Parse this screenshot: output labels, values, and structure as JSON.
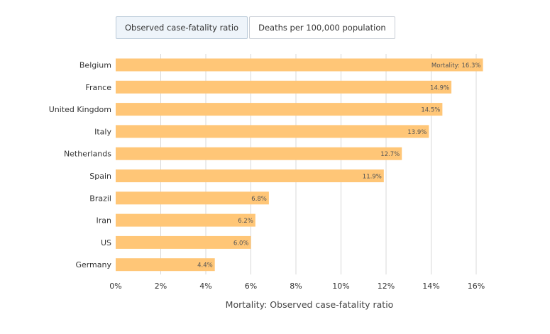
{
  "tabs": [
    {
      "label": "Observed case-fatality ratio",
      "active": true
    },
    {
      "label": "Deaths per 100,000 population",
      "active": false
    }
  ],
  "chart_data": {
    "type": "bar",
    "orientation": "horizontal",
    "categories": [
      "Belgium",
      "France",
      "United Kingdom",
      "Italy",
      "Netherlands",
      "Spain",
      "Brazil",
      "Iran",
      "US",
      "Germany"
    ],
    "values": [
      16.3,
      14.9,
      14.5,
      13.9,
      12.7,
      11.9,
      6.8,
      6.2,
      6.0,
      4.4
    ],
    "data_labels": [
      "Mortality: 16.3%",
      "14.9%",
      "14.5%",
      "13.9%",
      "12.7%",
      "11.9%",
      "6.8%",
      "6.2%",
      "6.0%",
      "4.4%"
    ],
    "xlabel": "Mortality: Observed case-fatality ratio",
    "xlim": [
      0,
      16
    ],
    "xticks": [
      0,
      2,
      4,
      6,
      8,
      10,
      12,
      14,
      16
    ],
    "xtick_labels": [
      "0%",
      "2%",
      "4%",
      "6%",
      "8%",
      "10%",
      "12%",
      "14%",
      "16%"
    ],
    "grid": true,
    "bar_color": "#ffc677",
    "grid_color": "#d8d8d8"
  }
}
